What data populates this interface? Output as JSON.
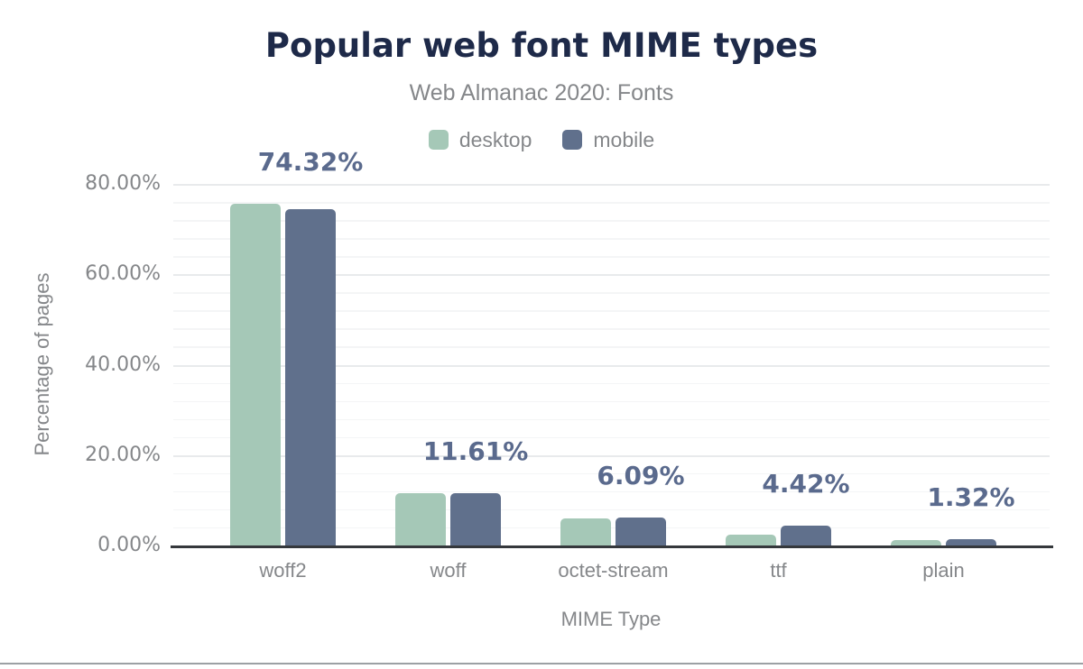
{
  "colors": {
    "title": "#1e2a49",
    "axis_text": "#85878a",
    "value_label": "#5a6a8d",
    "axis_line": "#35383c",
    "grid_major": "#e8eaec",
    "grid_minor": "#f4f5f6",
    "divider": "#9ca0a4",
    "background": "#ffffff",
    "desktop": "#a5c8b7",
    "mobile": "#60708c"
  },
  "chart_data": {
    "type": "bar",
    "title": "Popular web font MIME types",
    "subtitle": "Web Almanac 2020: Fonts",
    "xlabel": "MIME Type",
    "ylabel": "Percentage of pages",
    "categories": [
      "woff2",
      "woff",
      "octet-stream",
      "ttf",
      "plain"
    ],
    "series": [
      {
        "name": "desktop",
        "color": "#a5c8b7",
        "values": [
          75.7,
          11.5,
          5.9,
          2.4,
          1.2
        ]
      },
      {
        "name": "mobile",
        "color": "#60708c",
        "values": [
          74.32,
          11.61,
          6.09,
          4.42,
          1.32
        ]
      }
    ],
    "value_labels": [
      "74.32%",
      "11.61%",
      "6.09%",
      "4.42%",
      "1.32%"
    ],
    "value_labels_series": "mobile",
    "y_ticks": [
      "0.00%",
      "20.00%",
      "40.00%",
      "60.00%",
      "80.00%"
    ],
    "y_tick_values": [
      0,
      20,
      40,
      60,
      80
    ],
    "ylim": [
      0,
      80
    ],
    "grid": {
      "minor_step": 4,
      "major_step": 20
    },
    "legend_position": "top"
  }
}
